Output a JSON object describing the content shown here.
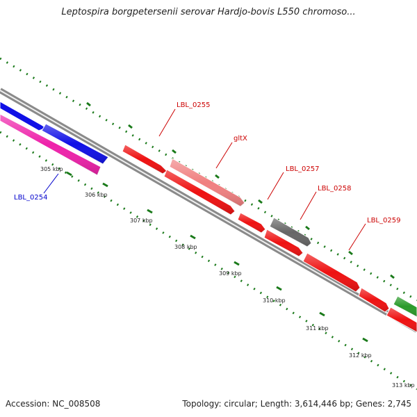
{
  "title": "Leptospira borgpetersenii serovar Hardjo-bovis L550 chromoso...",
  "footer": {
    "accession": "Accession: NC_008508",
    "topology": "Topology: circular; Length: 3,614,446 bp; Genes: 2,745"
  },
  "ticks": [
    {
      "label": "305 kbp"
    },
    {
      "label": "306 kbp"
    },
    {
      "label": "307 kbp"
    },
    {
      "label": "308 kbp"
    },
    {
      "label": "309 kbp"
    },
    {
      "label": "310 kbp"
    },
    {
      "label": "311 kbp"
    },
    {
      "label": "312 kbp"
    },
    {
      "label": "313 kbp"
    }
  ],
  "genes": [
    {
      "name": "LBL_0254",
      "color": "#1010e6",
      "track": "reverse"
    },
    {
      "name": "LBL_0255",
      "color": "#ee1111",
      "track": "forward"
    },
    {
      "name": "gltX",
      "color": "#f08080",
      "track": "forward"
    },
    {
      "name": "LBL_0257",
      "color": "#ee1111",
      "track": "forward"
    },
    {
      "name": "LBL_0258",
      "color": "#666666",
      "track": "forward"
    },
    {
      "name": "LBL_0259",
      "color": "#ee1111",
      "track": "forward"
    }
  ],
  "colors": {
    "tick_green": "#1a7a1a",
    "backbone": "#808080",
    "label_red": "#cc0000",
    "label_blue": "#0000cc",
    "magenta": "#ee22aa",
    "green_gene": "#2a9a2a"
  }
}
